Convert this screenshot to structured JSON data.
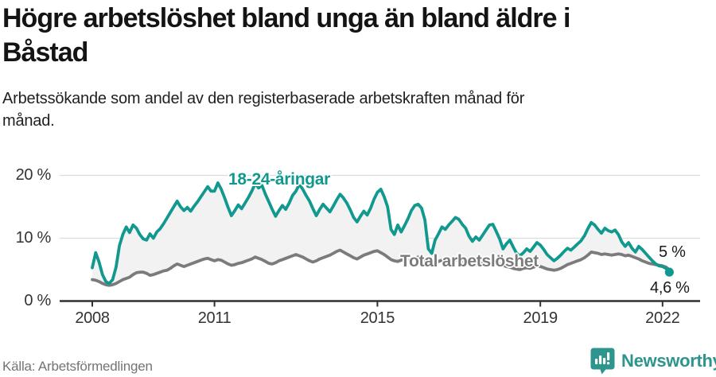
{
  "header": {
    "title_line1": "Högre arbetslöshet bland unga än bland äldre i",
    "title_line2": "Båstad",
    "subtitle_line1": "Arbetssökande som andel av den registerbaserade arbetskraften månad för",
    "subtitle_line2": "månad."
  },
  "footer": {
    "source": "Källa: Arbetsförmedlingen",
    "brand": "Newsworthy",
    "brand_color": "#2e948e"
  },
  "chart_data": {
    "type": "line",
    "frequency": "monthly",
    "start": "2008-01",
    "end": "2022-03",
    "unit": "%",
    "grid": "horizontal",
    "legend": "inline-labels",
    "fill_between_color": "#f2f2f2",
    "axis_color": "#303030",
    "grid_color": "#dcdcdc",
    "x_axis": {
      "min": 2007.8,
      "max": 2022.9,
      "ticks": [
        {
          "value": 2008,
          "label": "2008"
        },
        {
          "value": 2011,
          "label": "2011"
        },
        {
          "value": 2015,
          "label": "2015"
        },
        {
          "value": 2019,
          "label": "2019"
        },
        {
          "value": 2022,
          "label": "2022"
        }
      ]
    },
    "y_axis": {
      "min": 0,
      "max": 20,
      "ticks": [
        {
          "value": 0,
          "label": "0 %"
        },
        {
          "value": 10,
          "label": "10 %"
        },
        {
          "value": 20,
          "label": "20 %"
        }
      ]
    },
    "series": [
      {
        "name": "18-24-åringar",
        "color": "#12998f",
        "end_dot": true,
        "values": [
          5.3,
          7.7,
          6.2,
          4.2,
          3.1,
          2.8,
          3.4,
          5.4,
          8.8,
          10.6,
          11.8,
          10.9,
          12.1,
          11.6,
          10.6,
          9.9,
          9.7,
          10.7,
          10.0,
          11.0,
          11.5,
          12.3,
          13.2,
          14.1,
          15.0,
          15.9,
          15.0,
          14.4,
          14.9,
          14.3,
          15.1,
          15.8,
          16.6,
          17.4,
          18.2,
          17.5,
          17.5,
          18.8,
          17.8,
          16.4,
          14.9,
          13.6,
          14.4,
          15.3,
          14.7,
          15.6,
          16.5,
          17.5,
          18.7,
          18.0,
          18.4,
          17.0,
          15.8,
          14.6,
          13.5,
          14.4,
          15.2,
          14.6,
          15.6,
          16.8,
          17.5,
          18.6,
          17.8,
          16.8,
          15.9,
          14.7,
          13.6,
          14.6,
          15.4,
          14.8,
          14.2,
          15.1,
          16.1,
          17.0,
          16.4,
          15.6,
          14.5,
          13.3,
          12.6,
          13.5,
          14.3,
          13.7,
          14.8,
          16.2,
          17.3,
          17.8,
          16.6,
          15.0,
          11.4,
          10.6,
          12.1,
          11.0,
          12.0,
          13.1,
          14.4,
          15.2,
          15.4,
          14.8,
          12.9,
          8.3,
          7.6,
          9.7,
          10.7,
          11.8,
          11.4,
          12.1,
          12.7,
          13.3,
          13.0,
          12.2,
          11.6,
          10.3,
          9.5,
          10.2,
          9.7,
          10.5,
          11.3,
          12.1,
          12.2,
          11.1,
          9.9,
          8.3,
          9.1,
          9.7,
          8.6,
          7.6,
          7.2,
          7.7,
          8.3,
          7.9,
          8.6,
          9.3,
          8.9,
          8.2,
          7.4,
          6.9,
          6.4,
          6.8,
          7.3,
          7.9,
          8.4,
          8.1,
          8.6,
          9.1,
          9.6,
          10.4,
          11.5,
          12.5,
          12.1,
          11.4,
          10.8,
          11.6,
          11.2,
          11.0,
          11.3,
          10.6,
          9.4,
          8.7,
          9.3,
          8.4,
          7.8,
          8.7,
          8.2,
          7.6,
          7.0,
          6.4,
          5.9,
          5.6,
          5.5,
          5.2,
          4.6
        ]
      },
      {
        "name": "Total arbetslöshet",
        "color": "#7b7b7b",
        "end_dot": false,
        "values": [
          3.4,
          3.3,
          3.1,
          2.8,
          2.6,
          2.5,
          2.6,
          2.8,
          3.1,
          3.4,
          3.6,
          3.8,
          4.2,
          4.5,
          4.6,
          4.6,
          4.4,
          4.1,
          4.2,
          4.4,
          4.6,
          4.8,
          4.9,
          5.2,
          5.6,
          5.9,
          5.7,
          5.5,
          5.7,
          5.9,
          6.1,
          6.3,
          6.5,
          6.7,
          6.8,
          6.6,
          6.4,
          6.6,
          6.5,
          6.2,
          5.9,
          5.7,
          5.8,
          6.0,
          6.1,
          6.3,
          6.5,
          6.7,
          7.0,
          6.8,
          6.6,
          6.3,
          6.0,
          5.9,
          6.1,
          6.4,
          6.6,
          6.8,
          7.0,
          7.2,
          7.4,
          7.2,
          7.0,
          6.7,
          6.4,
          6.2,
          6.4,
          6.7,
          6.9,
          7.1,
          7.3,
          7.6,
          7.9,
          8.1,
          7.8,
          7.5,
          7.2,
          6.9,
          6.7,
          7.0,
          7.3,
          7.5,
          7.7,
          7.9,
          8.0,
          7.7,
          7.4,
          7.0,
          6.6,
          6.4,
          6.3,
          6.5,
          6.6,
          6.4,
          6.6,
          6.8,
          7.0,
          6.8,
          6.5,
          6.2,
          6.0,
          6.1,
          6.3,
          6.5,
          6.4,
          6.2,
          6.4,
          6.6,
          6.5,
          6.3,
          6.1,
          5.9,
          5.7,
          5.8,
          6.0,
          6.2,
          6.1,
          5.9,
          6.0,
          6.1,
          5.9,
          5.7,
          5.5,
          5.4,
          5.2,
          5.1,
          5.0,
          5.2,
          5.3,
          5.2,
          5.4,
          5.6,
          5.5,
          5.3,
          5.1,
          5.0,
          4.9,
          5.0,
          5.2,
          5.5,
          5.8,
          6.0,
          6.2,
          6.4,
          6.6,
          6.9,
          7.3,
          7.8,
          7.7,
          7.6,
          7.4,
          7.5,
          7.4,
          7.3,
          7.4,
          7.5,
          7.4,
          7.2,
          7.3,
          7.1,
          6.9,
          6.7,
          6.4,
          6.2,
          6.0,
          5.9,
          5.8,
          5.7,
          5.6,
          5.4,
          5.0
        ]
      }
    ],
    "end_labels": [
      {
        "text": "5 %",
        "series": "Total arbetslöshet",
        "value": 5.0
      },
      {
        "text": "4,6 %",
        "series": "18-24-åringar",
        "value": 4.6
      }
    ]
  }
}
